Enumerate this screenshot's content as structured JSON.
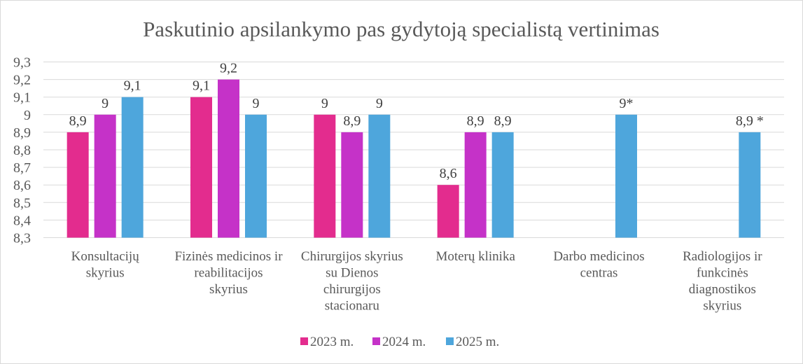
{
  "chart_data": {
    "type": "bar",
    "title": "Paskutinio apsilankymo pas gydytoją specialistą vertinimas",
    "xlabel": "",
    "ylabel": "",
    "ylim": [
      8.3,
      9.3
    ],
    "yticks": [
      "8,3",
      "8,4",
      "8,5",
      "8,6",
      "8,7",
      "8,8",
      "8,9",
      "9",
      "9,1",
      "9,2",
      "9,3"
    ],
    "grid": true,
    "legend_position": "bottom",
    "categories": [
      [
        "Konsultacijų",
        "skyrius"
      ],
      [
        "Fizinės medicinos ir",
        "reabilitacijos",
        "skyrius"
      ],
      [
        "Chirurgijos skyrius",
        "su Dienos",
        "chirurgijos",
        "stacionaru"
      ],
      [
        "Moterų klinika"
      ],
      [
        "Darbo medicinos",
        "centras"
      ],
      [
        "Radiologijos ir",
        "funkcinės",
        "diagnostikos",
        "skyrius"
      ]
    ],
    "series": [
      {
        "name": "2023 m.",
        "color": "#E32C8E",
        "values": [
          8.9,
          9.1,
          9.0,
          8.6,
          null,
          null
        ],
        "labels": [
          "8,9",
          "9,1",
          "9",
          "8,6",
          null,
          null
        ]
      },
      {
        "name": "2024 m.",
        "color": "#C532C8",
        "values": [
          9.0,
          9.2,
          8.9,
          8.9,
          null,
          null
        ],
        "labels": [
          "9",
          "9,2",
          "8,9",
          "8,9",
          null,
          null
        ]
      },
      {
        "name": "2025 m.",
        "color": "#4EA6DC",
        "values": [
          9.1,
          9.0,
          9.0,
          8.9,
          9.0,
          8.9
        ],
        "labels": [
          "9,1",
          "9",
          "9",
          "8,9",
          "9*",
          "8,9 *"
        ]
      }
    ]
  }
}
